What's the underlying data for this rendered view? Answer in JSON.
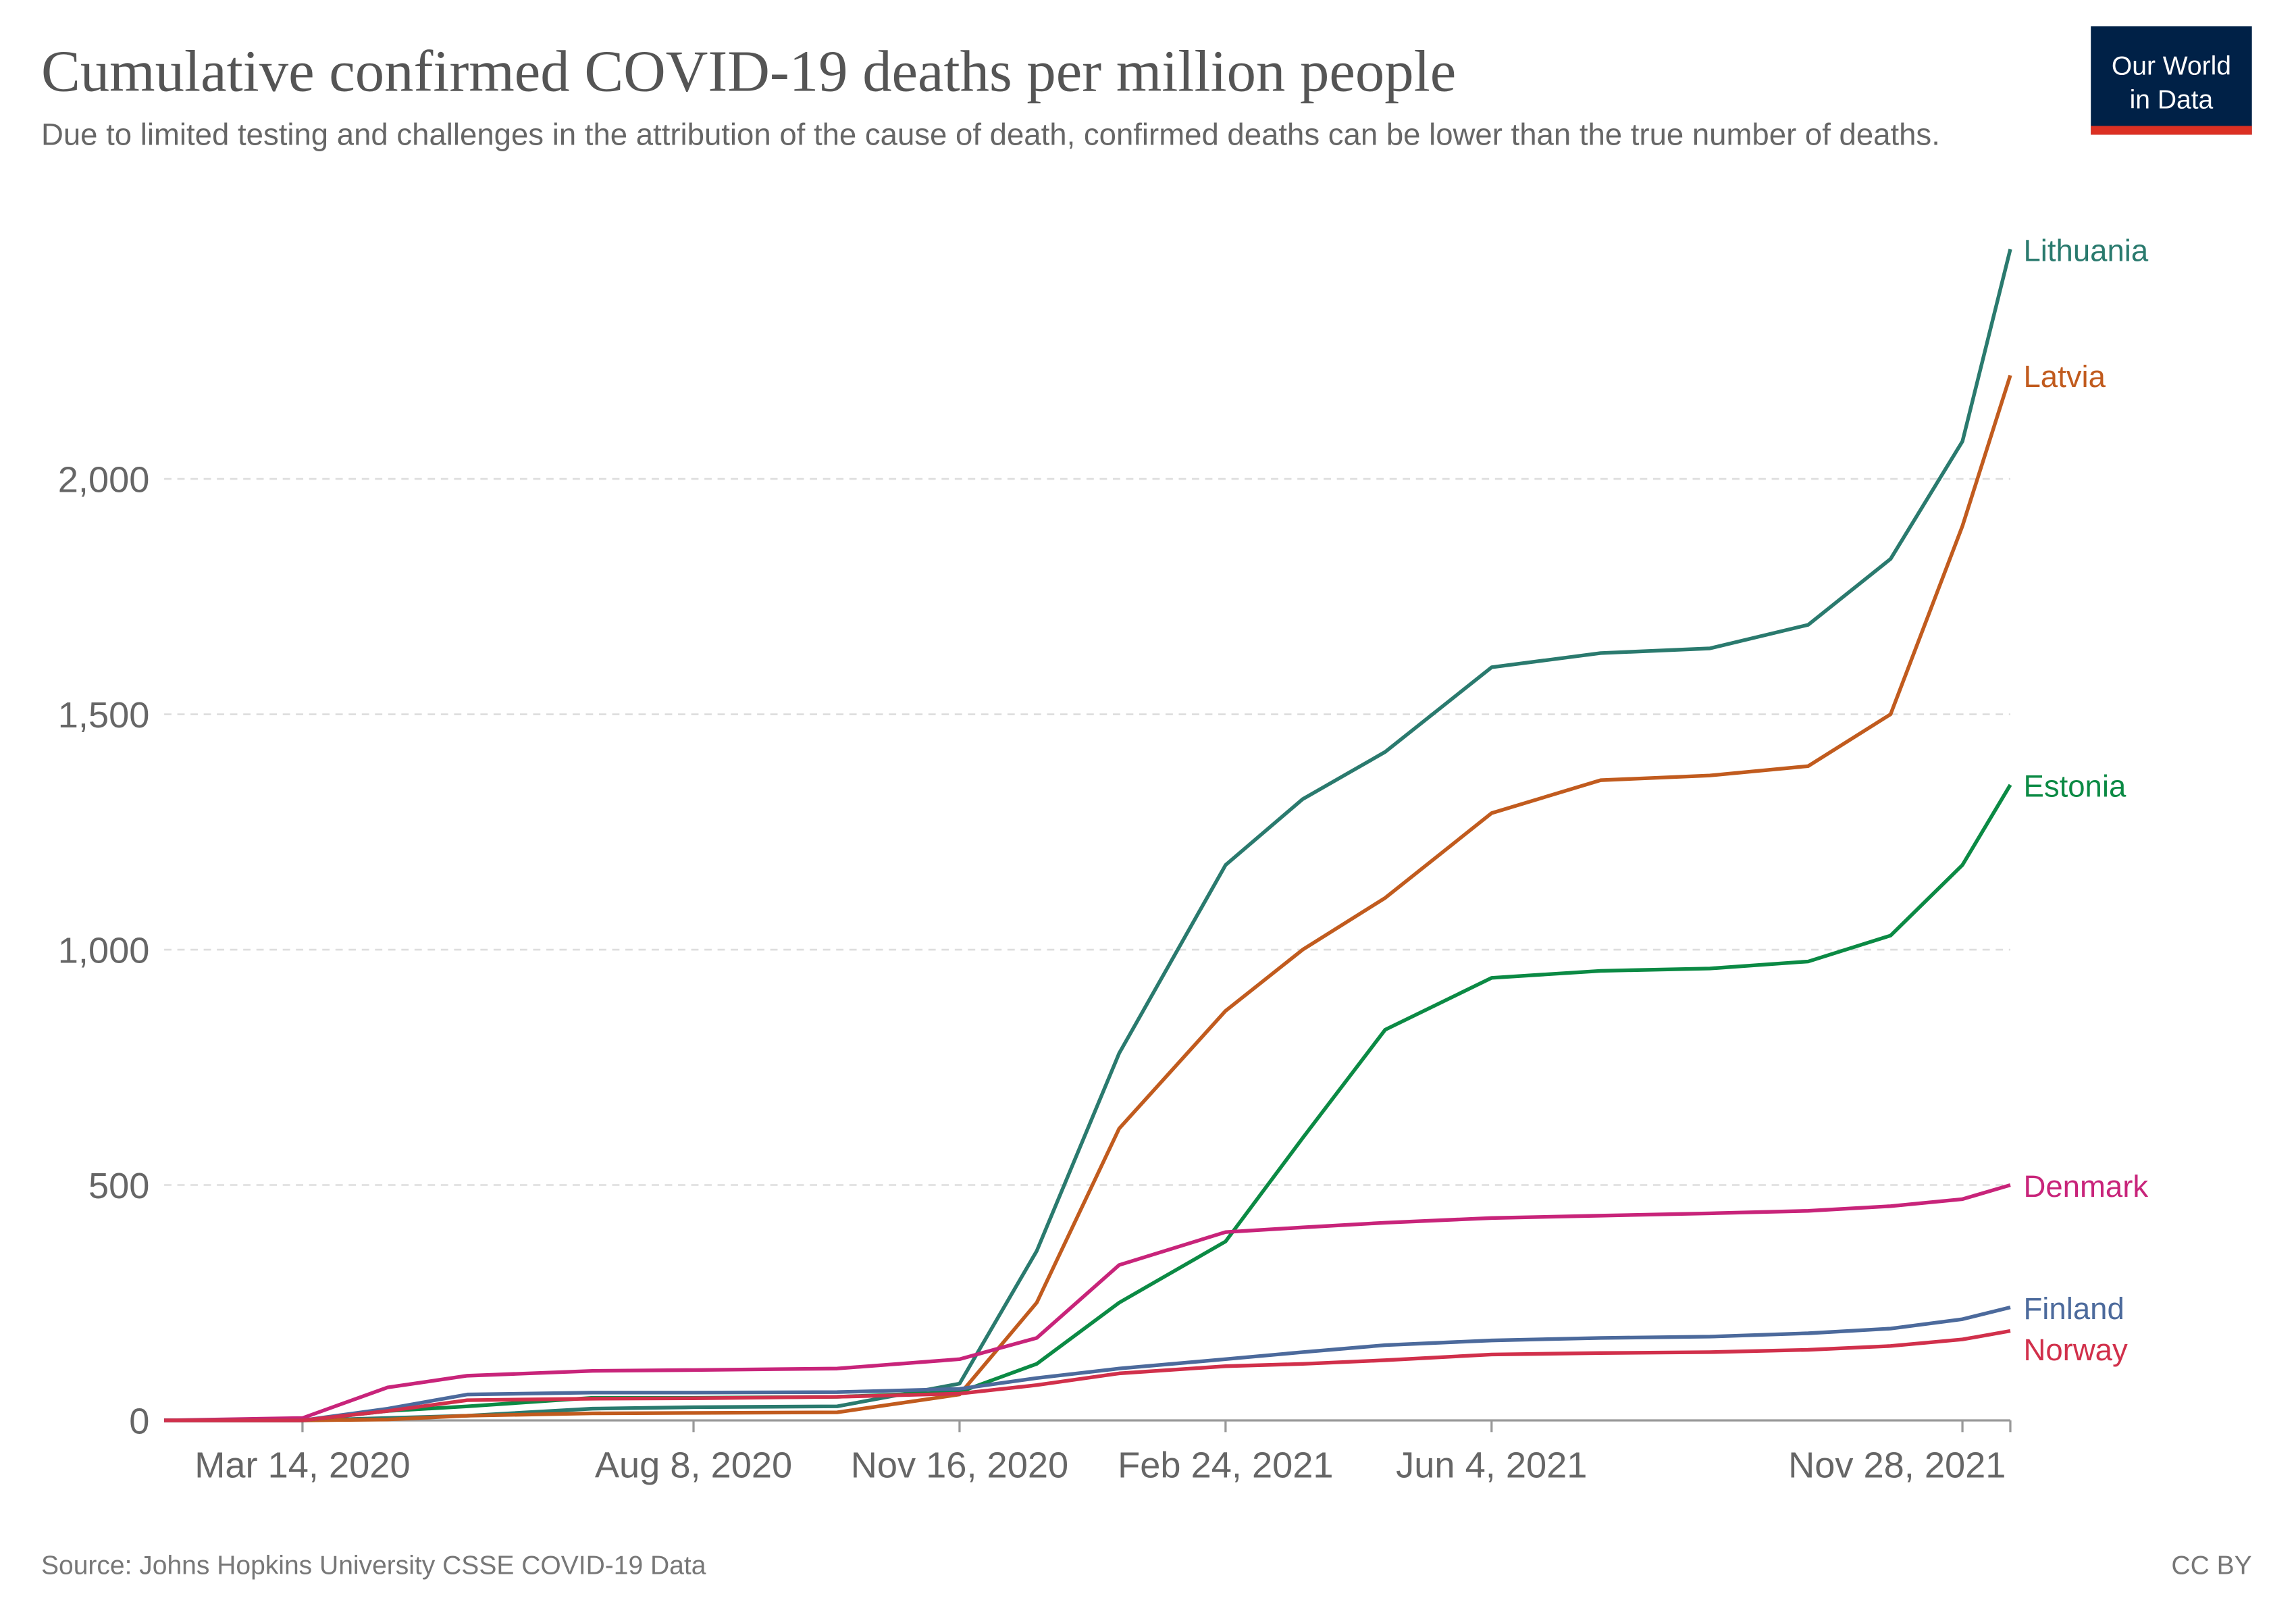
{
  "logo": [
    "Our World",
    "in Data"
  ],
  "source": "Source: Johns Hopkins University CSSE COVID-19 Data",
  "license": "CC BY",
  "chart_data": {
    "type": "line",
    "title": "Cumulative confirmed COVID-19 deaths per million people",
    "subtitle": "Due to limited testing and challenges in the attribution of the cause of death, confirmed deaths can be lower than the true number of deaths.",
    "x": [
      "2020-01-22",
      "2020-03-14",
      "2020-04-15",
      "2020-05-15",
      "2020-07-01",
      "2020-08-08",
      "2020-10-01",
      "2020-11-16",
      "2020-12-15",
      "2021-01-15",
      "2021-02-24",
      "2021-03-25",
      "2021-04-25",
      "2021-06-04",
      "2021-07-15",
      "2021-08-25",
      "2021-10-01",
      "2021-11-01",
      "2021-11-28",
      "2021-12-16"
    ],
    "xlim": [
      "2020-01-22",
      "2021-12-16"
    ],
    "xticks": [
      {
        "value": "2020-03-14",
        "label": "Mar 14, 2020"
      },
      {
        "value": "2020-08-08",
        "label": "Aug 8, 2020"
      },
      {
        "value": "2020-11-16",
        "label": "Nov 16, 2020"
      },
      {
        "value": "2021-02-24",
        "label": "Feb 24, 2021"
      },
      {
        "value": "2021-06-04",
        "label": "Jun 4, 2021"
      },
      {
        "value": "2021-11-28",
        "label": "Nov 28, 2021"
      }
    ],
    "ylim": [
      0,
      2500
    ],
    "yticks": [
      0,
      500,
      {
        "value": 1000,
        "label": "1,000"
      },
      {
        "value": 1500,
        "label": "1,500"
      },
      {
        "value": 2000,
        "label": "2,000"
      }
    ],
    "grid": true,
    "series": [
      {
        "name": "Lithuania",
        "color": "#2a7a6e",
        "values": [
          0,
          0,
          5,
          10,
          25,
          28,
          30,
          78,
          360,
          780,
          1180,
          1320,
          1420,
          1600,
          1630,
          1640,
          1690,
          1830,
          2080,
          2488
        ]
      },
      {
        "name": "Latvia",
        "color": "#c15b1e",
        "values": [
          0,
          0,
          2,
          10,
          15,
          16,
          17,
          55,
          250,
          620,
          870,
          1000,
          1110,
          1290,
          1360,
          1370,
          1390,
          1500,
          1900,
          2220
        ]
      },
      {
        "name": "Estonia",
        "color": "#0b8a44",
        "values": [
          0,
          0,
          20,
          30,
          48,
          48,
          50,
          60,
          120,
          250,
          380,
          600,
          830,
          940,
          955,
          960,
          975,
          1030,
          1180,
          1350
        ]
      },
      {
        "name": "Denmark",
        "color": "#c8247a",
        "values": [
          0,
          5,
          70,
          95,
          105,
          107,
          110,
          130,
          175,
          330,
          400,
          410,
          420,
          430,
          435,
          440,
          445,
          455,
          470,
          500
        ]
      },
      {
        "name": "Finland",
        "color": "#4c6a9c",
        "values": [
          0,
          0,
          25,
          55,
          59,
          59,
          60,
          67,
          90,
          110,
          130,
          145,
          160,
          170,
          175,
          178,
          185,
          195,
          215,
          240
        ]
      },
      {
        "name": "Norway",
        "color": "#d1304b",
        "values": [
          0,
          0,
          20,
          43,
          46,
          47,
          50,
          57,
          75,
          100,
          115,
          120,
          128,
          140,
          143,
          145,
          150,
          158,
          172,
          190
        ]
      }
    ]
  }
}
